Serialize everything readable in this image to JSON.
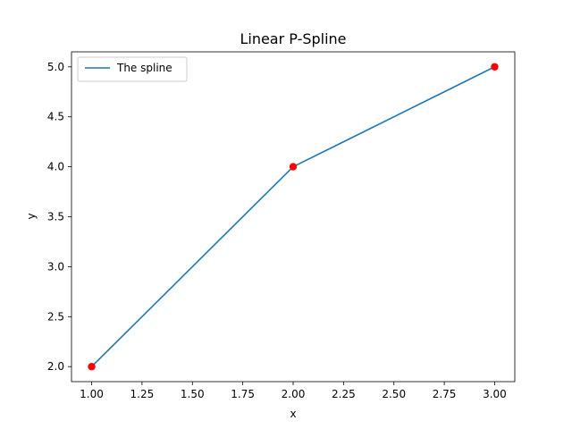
{
  "chart_data": {
    "type": "line",
    "title": "Linear P-Spline",
    "xlabel": "x",
    "ylabel": "y",
    "xlim": [
      0.9,
      3.1
    ],
    "ylim": [
      1.85,
      5.15
    ],
    "x_ticks": [
      1.0,
      1.25,
      1.5,
      1.75,
      2.0,
      2.25,
      2.5,
      2.75,
      3.0
    ],
    "x_tick_labels": [
      "1.00",
      "1.25",
      "1.50",
      "1.75",
      "2.00",
      "2.25",
      "2.50",
      "2.75",
      "3.00"
    ],
    "y_ticks": [
      2.0,
      2.5,
      3.0,
      3.5,
      4.0,
      4.5,
      5.0
    ],
    "y_tick_labels": [
      "2.0",
      "2.5",
      "3.0",
      "3.5",
      "4.0",
      "4.5",
      "5.0"
    ],
    "grid": false,
    "legend_position": "upper-left",
    "series": [
      {
        "name": "The spline",
        "kind": "line",
        "color": "#1f77b4",
        "x": [
          1.0,
          2.0,
          3.0
        ],
        "y": [
          2.0,
          4.0,
          5.0
        ]
      },
      {
        "kind": "points",
        "color": "#ff0000",
        "x": [
          1.0,
          2.0,
          3.0
        ],
        "y": [
          2.0,
          4.0,
          5.0
        ]
      }
    ]
  }
}
